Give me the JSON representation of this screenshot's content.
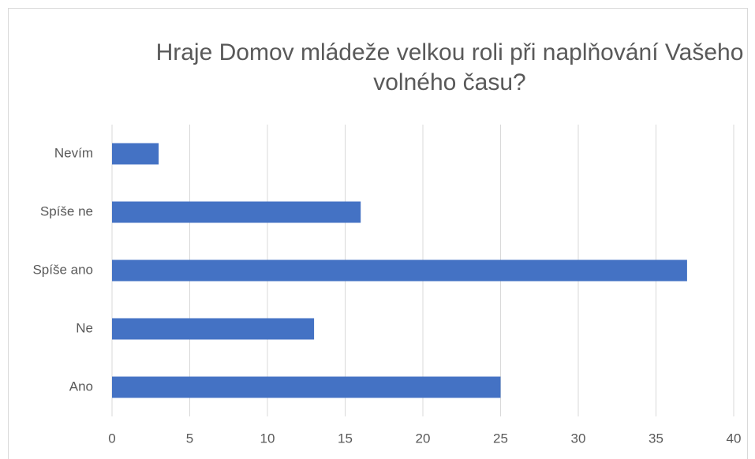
{
  "chart_data": {
    "type": "bar",
    "orientation": "horizontal",
    "title": "Hraje Domov mládeže velkou roli při naplňování Vašeho volného času?",
    "categories": [
      "Nevím",
      "Spíše ne",
      "Spíše ano",
      "Ne",
      "Ano"
    ],
    "values": [
      3,
      16,
      37,
      13,
      25
    ],
    "color": "#4472c4",
    "xlim": [
      0,
      40
    ],
    "xticks": [
      0,
      5,
      10,
      15,
      20,
      25,
      30,
      35,
      40
    ],
    "grid": true
  }
}
